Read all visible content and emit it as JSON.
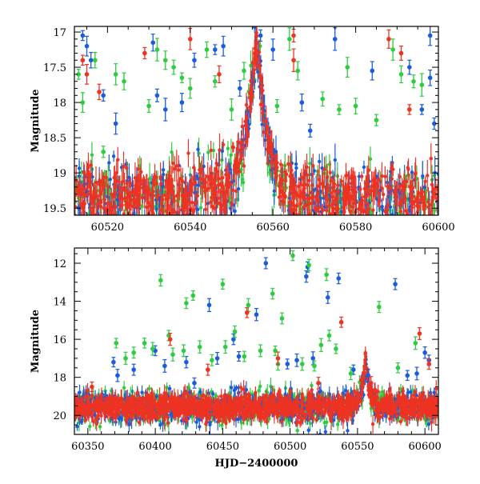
{
  "chart_data": [
    {
      "type": "scatter",
      "title": "",
      "xlabel": "",
      "ylabel": "Magnitude",
      "xlim": [
        60512,
        60600
      ],
      "ylim": [
        19.6,
        16.92
      ],
      "y_inverted": true,
      "x_ticks": [
        60520,
        60540,
        60560,
        60580,
        60600
      ],
      "y_ticks": [
        17,
        17.5,
        18,
        18.5,
        19,
        19.5
      ],
      "legend": "none",
      "grid": false,
      "baseline_model": {
        "base_mag": 19.35,
        "peak_time": 60556.0,
        "peak_mag": 17.0,
        "halfwidth": 2.6
      },
      "series": [
        {
          "color": "#1a5cdb",
          "points": [
            [
              60514,
              17.05
            ],
            [
              60515,
              17.2
            ],
            [
              60516,
              17.4
            ],
            [
              60519,
              17.9
            ],
            [
              60522,
              18.3
            ],
            [
              60531,
              17.15
            ],
            [
              60532,
              17.9
            ],
            [
              60534,
              18.1
            ],
            [
              60538,
              18.0
            ],
            [
              60541,
              17.4
            ],
            [
              60546,
              17.25
            ],
            [
              60548,
              17.2
            ],
            [
              60552,
              17.8
            ],
            [
              60557,
              17.05
            ],
            [
              60560,
              17.25
            ],
            [
              60567,
              18.0
            ],
            [
              60569,
              18.4
            ],
            [
              60575,
              17.1
            ],
            [
              60584,
              17.55
            ],
            [
              60593,
              17.5
            ],
            [
              60596,
              18.1
            ],
            [
              60598,
              17.05
            ],
            [
              60598,
              17.65
            ],
            [
              60599,
              18.3
            ]
          ]
        },
        {
          "color": "#2ecc40",
          "points": [
            [
              60513,
              17.6
            ],
            [
              60514,
              18.0
            ],
            [
              60517,
              17.4
            ],
            [
              60519,
              18.7
            ],
            [
              60522,
              17.6
            ],
            [
              60524,
              17.7
            ],
            [
              60530,
              18.05
            ],
            [
              60532,
              17.25
            ],
            [
              60534,
              17.4
            ],
            [
              60536,
              17.5
            ],
            [
              60538,
              17.65
            ],
            [
              60540,
              17.8
            ],
            [
              60544,
              17.25
            ],
            [
              60546,
              17.7
            ],
            [
              60550,
              18.1
            ],
            [
              60553,
              17.55
            ],
            [
              60561,
              18.05
            ],
            [
              60564,
              17.1
            ],
            [
              60566,
              17.55
            ],
            [
              60572,
              17.95
            ],
            [
              60576,
              18.1
            ],
            [
              60578,
              17.5
            ],
            [
              60580,
              18.05
            ],
            [
              60585,
              18.25
            ],
            [
              60589,
              17.25
            ],
            [
              60591,
              17.6
            ],
            [
              60594,
              17.7
            ],
            [
              60596,
              17.75
            ]
          ]
        },
        {
          "color": "#ee3322",
          "points": [
            [
              60514,
              17.4
            ],
            [
              60515,
              17.6
            ],
            [
              60518,
              17.85
            ],
            [
              60529,
              17.3
            ],
            [
              60540,
              17.1
            ],
            [
              60547,
              17.6
            ],
            [
              60565,
              17.05
            ],
            [
              60565,
              17.4
            ],
            [
              60588,
              17.1
            ],
            [
              60591,
              17.3
            ],
            [
              60593,
              18.1
            ]
          ]
        }
      ]
    },
    {
      "type": "scatter",
      "title": "",
      "xlabel": "HJD−2400000",
      "ylabel": "Magnitude",
      "xlim": [
        60340,
        60610
      ],
      "ylim": [
        21.0,
        11.2
      ],
      "y_inverted": true,
      "x_ticks": [
        60350,
        60400,
        60450,
        60500,
        60550,
        60600
      ],
      "y_ticks": [
        12,
        14,
        16,
        18,
        20
      ],
      "legend": "none",
      "grid": false,
      "baseline_model": {
        "base_mag": 19.55,
        "peak_time": 60556.0,
        "peak_mag": 17.0,
        "halfwidth": 2.8
      },
      "series": [
        {
          "color": "#1a5cdb",
          "points": [
            [
              60369,
              17.2
            ],
            [
              60372,
              17.9
            ],
            [
              60384,
              17.6
            ],
            [
              60400,
              16.6
            ],
            [
              60407,
              17.4
            ],
            [
              60423,
              17.2
            ],
            [
              60429,
              18.3
            ],
            [
              60440,
              14.2
            ],
            [
              60446,
              17.0
            ],
            [
              60458,
              16.0
            ],
            [
              60462,
              16.9
            ],
            [
              60475,
              14.7
            ],
            [
              60482,
              12.0
            ],
            [
              60498,
              17.3
            ],
            [
              60505,
              17.1
            ],
            [
              60512,
              12.7
            ],
            [
              60513,
              12.2
            ],
            [
              60517,
              17.0
            ],
            [
              60528,
              13.8
            ],
            [
              60536,
              12.8
            ],
            [
              60547,
              17.6
            ],
            [
              60558,
              17.9
            ],
            [
              60578,
              13.1
            ],
            [
              60587,
              17.9
            ],
            [
              60594,
              17.8
            ],
            [
              60600,
              16.7
            ],
            [
              60603,
              17.1
            ]
          ]
        },
        {
          "color": "#2ecc40",
          "points": [
            [
              60371,
              16.2
            ],
            [
              60378,
              17.0
            ],
            [
              60384,
              16.7
            ],
            [
              60392,
              16.2
            ],
            [
              60398,
              16.5
            ],
            [
              60404,
              12.9
            ],
            [
              60410,
              15.8
            ],
            [
              60413,
              16.8
            ],
            [
              60421,
              16.6
            ],
            [
              60423,
              14.1
            ],
            [
              60428,
              13.7
            ],
            [
              60433,
              16.4
            ],
            [
              60442,
              17.1
            ],
            [
              60450,
              13.1
            ],
            [
              60452,
              16.4
            ],
            [
              60459,
              15.6
            ],
            [
              60466,
              16.9
            ],
            [
              60469,
              14.2
            ],
            [
              60478,
              16.6
            ],
            [
              60487,
              13.6
            ],
            [
              60489,
              16.6
            ],
            [
              60491,
              17.3
            ],
            [
              60494,
              14.9
            ],
            [
              60502,
              11.6
            ],
            [
              60509,
              17.3
            ],
            [
              60514,
              12.1
            ],
            [
              60518,
              17.4
            ],
            [
              60523,
              16.3
            ],
            [
              60527,
              12.6
            ],
            [
              60529,
              15.8
            ],
            [
              60534,
              16.5
            ],
            [
              60545,
              17.8
            ],
            [
              60566,
              14.3
            ],
            [
              60580,
              17.5
            ],
            [
              60593,
              16.2
            ]
          ]
        },
        {
          "color": "#ee3322",
          "points": [
            [
              60353,
              18.5
            ],
            [
              60411,
              16.0
            ],
            [
              60439,
              17.6
            ],
            [
              60468,
              14.6
            ],
            [
              60491,
              17.0
            ],
            [
              60521,
              18.3
            ],
            [
              60538,
              15.1
            ],
            [
              60560,
              18.3
            ],
            [
              60596,
              15.7
            ],
            [
              60603,
              17.3
            ]
          ]
        }
      ]
    }
  ],
  "icons": []
}
